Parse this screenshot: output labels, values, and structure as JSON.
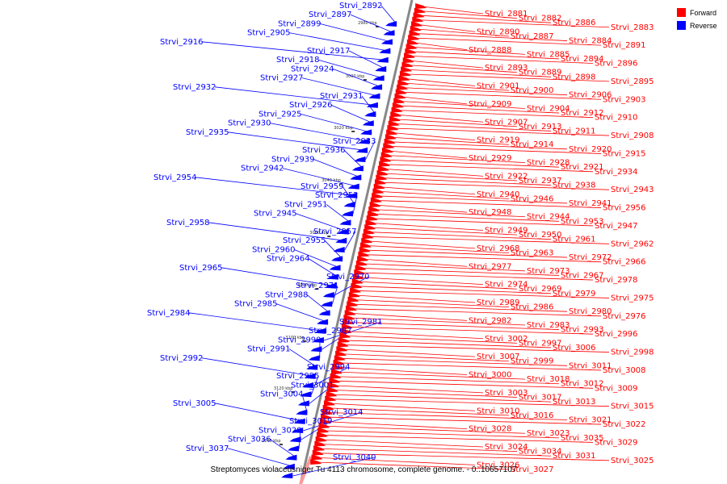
{
  "legend": {
    "forward_label": "Forward",
    "reverse_label": "Reverse",
    "forward_color": "#ff0000",
    "reverse_color": "#0000ff"
  },
  "caption": "Streptomyces violaceusniger Tu 4113 chromosome, complete genome. - 0..10657107",
  "ticks": [
    "2980 kbp",
    "3000 kbp",
    "3020 kbp",
    "3040 kbp",
    "3060 kbp",
    "3080 kbp",
    "3100 kbp",
    "3120 kbp",
    "3140 kbp"
  ],
  "genes_reverse": [
    "Strvi_2892",
    "Strvi_2897",
    "Strvi_2899",
    "Strvi_2905",
    "Strvi_2916",
    "Strvi_2917",
    "Strvi_2918",
    "Strvi_2924",
    "Strvi_2927",
    "Strvi_2932",
    "Strvi_2931",
    "Strvi_2926",
    "Strvi_2925",
    "Strvi_2930",
    "Strvi_2935",
    "Strvi_2933",
    "Strvi_2936",
    "Strvi_2939",
    "Strvi_2942",
    "Strvi_2954",
    "Strvi_2959",
    "Strvi_2952",
    "Strvi_2951",
    "Strvi_2945",
    "Strvi_2958",
    "Strvi_2957",
    "Strvi_2955",
    "Strvi_2960",
    "Strvi_2964",
    "Strvi_2965",
    "Strvi_2970",
    "Strvi_2971",
    "Strvi_2988",
    "Strvi_2985",
    "Strvi_2984",
    "Strvi_2981",
    "Strvi_2987",
    "Strvi_2990",
    "Strvi_2991",
    "Strvi_2992",
    "Strvi_2994",
    "Strvi_2995",
    "Strvi_3001",
    "Strvi_3004",
    "Strvi_3005",
    "Strvi_3014",
    "Strvi_3019",
    "Strvi_3020",
    "Strvi_3036",
    "Strvi_3037",
    "Strvi_3040"
  ],
  "genes_forward": [
    "Strvi_2881",
    "Strvi_2882",
    "Strvi_2886",
    "Strvi_2883",
    "Strvi_2890",
    "Strvi_2887",
    "Strvi_2884",
    "Strvi_2891",
    "Strvi_2888",
    "Strvi_2885",
    "Strvi_2894",
    "Strvi_2896",
    "Strvi_2893",
    "Strvi_2889",
    "Strvi_2898",
    "Strvi_2895",
    "Strvi_2901",
    "Strvi_2900",
    "Strvi_2906",
    "Strvi_2903",
    "Strvi_2909",
    "Strvi_2904",
    "Strvi_2912",
    "Strvi_2910",
    "Strvi_2907",
    "Strvi_2913",
    "Strvi_2911",
    "Strvi_2908",
    "Strvi_2919",
    "Strvi_2914",
    "Strvi_2920",
    "Strvi_2915",
    "Strvi_2929",
    "Strvi_2928",
    "Strvi_2921",
    "Strvi_2934",
    "Strvi_2922",
    "Strvi_2937",
    "Strvi_2938",
    "Strvi_2943",
    "Strvi_2940",
    "Strvi_2946",
    "Strvi_2941",
    "Strvi_2956",
    "Strvi_2948",
    "Strvi_2944",
    "Strvi_2953",
    "Strvi_2947",
    "Strvi_2949",
    "Strvi_2950",
    "Strvi_2961",
    "Strvi_2962",
    "Strvi_2968",
    "Strvi_2963",
    "Strvi_2972",
    "Strvi_2966",
    "Strvi_2977",
    "Strvi_2973",
    "Strvi_2967",
    "Strvi_2978",
    "Strvi_2974",
    "Strvi_2969",
    "Strvi_2979",
    "Strvi_2975",
    "Strvi_2989",
    "Strvi_2986",
    "Strvi_2980",
    "Strvi_2976",
    "Strvi_2982",
    "Strvi_2983",
    "Strvi_2993",
    "Strvi_2996",
    "Strvi_3002",
    "Strvi_2997",
    "Strvi_3006",
    "Strvi_2998",
    "Strvi_3007",
    "Strvi_2999",
    "Strvi_3011",
    "Strvi_3008",
    "Strvi_3000",
    "Strvi_3018",
    "Strvi_3012",
    "Strvi_3009",
    "Strvi_3003",
    "Strvi_3017",
    "Strvi_3013",
    "Strvi_3015",
    "Strvi_3010",
    "Strvi_3016",
    "Strvi_3021",
    "Strvi_3022",
    "Strvi_3028",
    "Strvi_3023",
    "Strvi_3035",
    "Strvi_3029",
    "Strvi_3024",
    "Strvi_3034",
    "Strvi_3031",
    "Strvi_3025",
    "Strvi_3026",
    "Strvi_3027"
  ]
}
